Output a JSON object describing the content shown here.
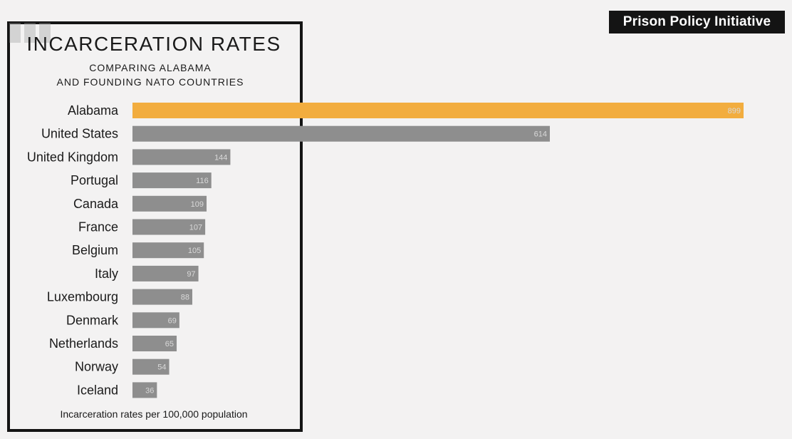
{
  "source_badge": "Prison Policy Initiative",
  "colors": {
    "highlight": "#f2ad3f",
    "bar": "#8e8e8e",
    "frame": "#141414",
    "background": "#f3f2f2"
  },
  "chart_data": {
    "type": "bar",
    "orientation": "horizontal",
    "title": "INCARCERATION RATES",
    "subtitle_lines": [
      "COMPARING ALABAMA",
      "AND FOUNDING NATO COUNTRIES"
    ],
    "footnote": "Incarceration rates per 100,000 population",
    "categories": [
      "Alabama",
      "United States",
      "United Kingdom",
      "Portugal",
      "Canada",
      "France",
      "Belgium",
      "Italy",
      "Luxembourg",
      "Denmark",
      "Netherlands",
      "Norway",
      "Iceland"
    ],
    "values": [
      899,
      614,
      144,
      116,
      109,
      107,
      105,
      97,
      88,
      69,
      65,
      54,
      36
    ],
    "value_labels": [
      "899",
      "614",
      "144",
      "116",
      "109",
      "107",
      "105",
      "97",
      "88",
      "69",
      "65",
      "54",
      "36"
    ],
    "highlight_category": "Alabama",
    "xlim": [
      0,
      899
    ]
  }
}
